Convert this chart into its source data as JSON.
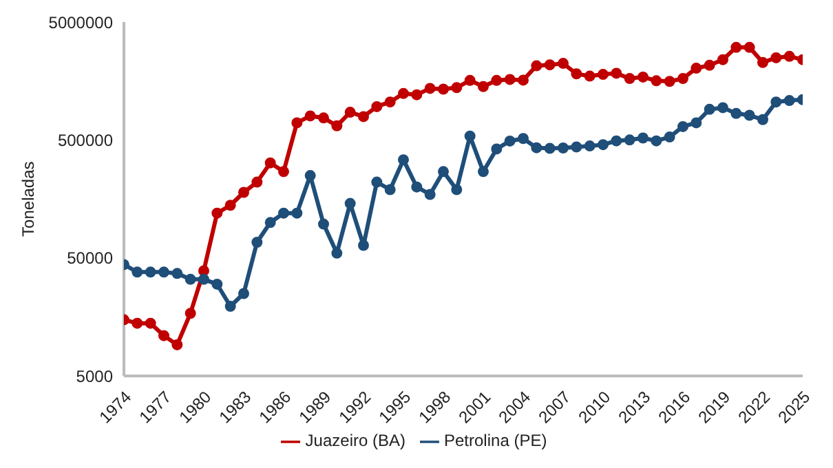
{
  "chart_data": {
    "type": "line",
    "ylabel": "Toneladas",
    "log": true,
    "ylim": [
      5000,
      5000000
    ],
    "yticks": [
      5000,
      50000,
      500000,
      5000000
    ],
    "xlim": [
      1974,
      2025
    ],
    "xticks": [
      1974,
      1977,
      1980,
      1983,
      1986,
      1989,
      1992,
      1995,
      1998,
      2001,
      2004,
      2007,
      2010,
      2013,
      2016,
      2019,
      2022,
      2025
    ],
    "x": [
      1974,
      1975,
      1976,
      1977,
      1978,
      1979,
      1980,
      1981,
      1982,
      1983,
      1984,
      1985,
      1986,
      1987,
      1988,
      1989,
      1990,
      1991,
      1992,
      1993,
      1994,
      1995,
      1996,
      1997,
      1998,
      1999,
      2000,
      2001,
      2002,
      2003,
      2004,
      2005,
      2006,
      2007,
      2008,
      2009,
      2010,
      2011,
      2012,
      2013,
      2014,
      2015,
      2016,
      2017,
      2018,
      2019,
      2020,
      2021,
      2022,
      2023,
      2024,
      2025
    ],
    "legend": "bottom",
    "grid": false,
    "marker": "circle",
    "line_style": "solid",
    "series": [
      {
        "name": "Juazeiro (BA)",
        "color": "#c00000",
        "values": [
          15000,
          14000,
          14000,
          11000,
          9200,
          17000,
          39000,
          120000,
          140000,
          180000,
          220000,
          320000,
          270000,
          700000,
          800000,
          770000,
          660000,
          860000,
          790000,
          960000,
          1050000,
          1240000,
          1210000,
          1370000,
          1350000,
          1390000,
          1600000,
          1420000,
          1600000,
          1630000,
          1610000,
          2130000,
          2170000,
          2230000,
          1820000,
          1740000,
          1800000,
          1840000,
          1660000,
          1710000,
          1590000,
          1570000,
          1660000,
          2030000,
          2150000,
          2400000,
          3050000,
          3050000,
          2270000,
          2490000,
          2560000,
          2400000
        ]
      },
      {
        "name": "Petrolina (PE)",
        "color": "#1f4e79",
        "values": [
          44000,
          38000,
          38000,
          38000,
          37000,
          33000,
          33000,
          30000,
          19500,
          25000,
          68000,
          100000,
          120000,
          120000,
          250000,
          97000,
          55000,
          145000,
          64000,
          220000,
          190000,
          340000,
          200000,
          173000,
          270000,
          190000,
          540000,
          270000,
          420000,
          490000,
          515000,
          430000,
          425000,
          428000,
          437000,
          445000,
          457000,
          492000,
          501000,
          520000,
          492000,
          530000,
          650000,
          700000,
          910000,
          940000,
          840000,
          810000,
          745000,
          1050000,
          1080000,
          1100000
        ]
      }
    ]
  }
}
